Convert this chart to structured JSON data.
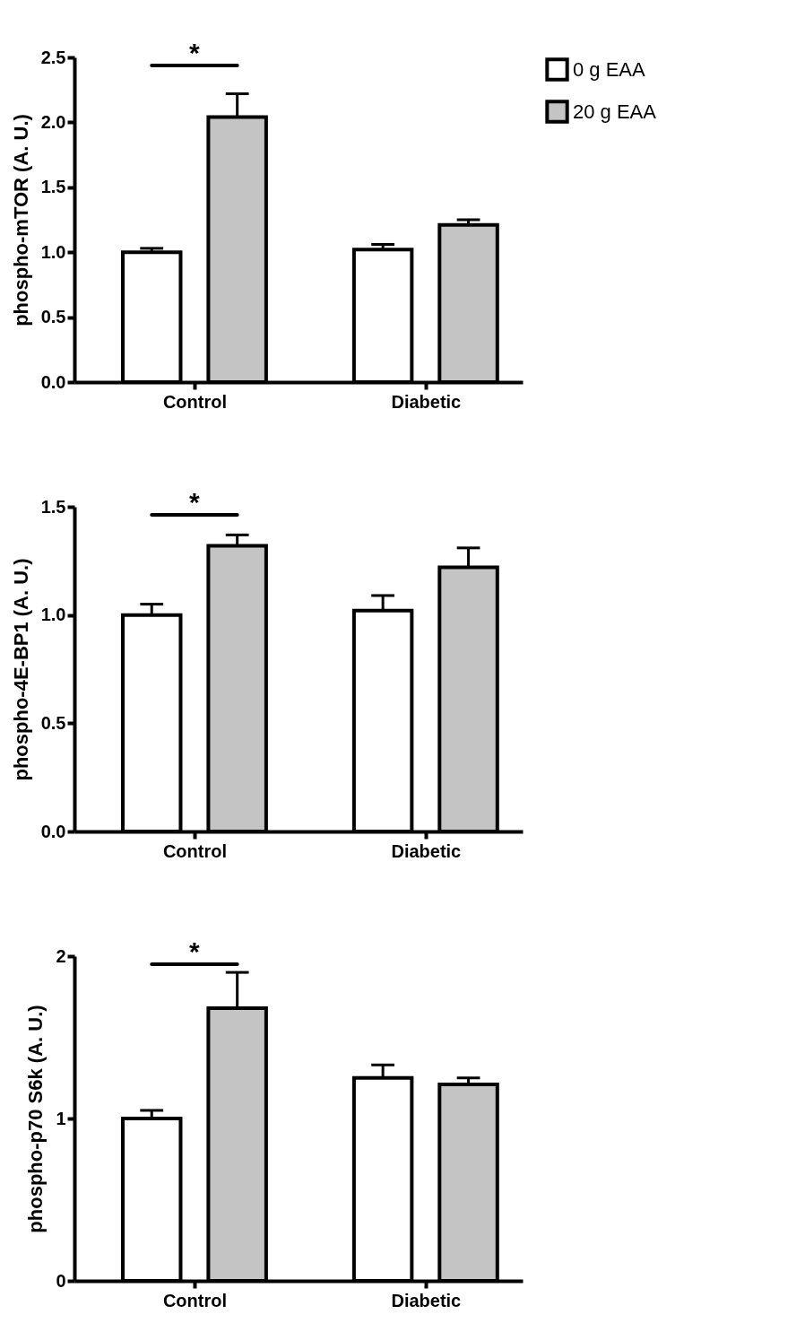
{
  "chart_data": [
    {
      "type": "bar",
      "ylabel": "phospho-mTOR (A. U.)",
      "categories": [
        "Control",
        "Diabetic"
      ],
      "series": [
        {
          "name": "0 g EAA",
          "color": "#ffffff",
          "values": [
            1.0,
            1.02
          ],
          "errors": [
            0.03,
            0.04
          ]
        },
        {
          "name": "20 g EAA",
          "color": "#c4c4c4",
          "values": [
            2.04,
            1.21
          ],
          "errors": [
            0.18,
            0.04
          ]
        }
      ],
      "ylim": [
        0,
        2.5
      ],
      "yticks": [
        {
          "value": 0,
          "label": "0.0"
        },
        {
          "value": 0.5,
          "label": "0.5"
        },
        {
          "value": 1,
          "label": "1.0"
        },
        {
          "value": 1.5,
          "label": "1.5"
        },
        {
          "value": 2,
          "label": "2.0"
        },
        {
          "value": 2.5,
          "label": "2.5"
        }
      ],
      "legend": "top right",
      "grid": false,
      "annotations": [
        "*"
      ]
    },
    {
      "type": "bar",
      "ylabel": "phospho-4E-BP1 (A. U.)",
      "categories": [
        "Control",
        "Diabetic"
      ],
      "series": [
        {
          "name": "0 g EAA",
          "color": "#ffffff",
          "values": [
            1.0,
            1.02
          ],
          "errors": [
            0.05,
            0.07
          ]
        },
        {
          "name": "20 g EAA",
          "color": "#c4c4c4",
          "values": [
            1.32,
            1.22
          ],
          "errors": [
            0.05,
            0.09
          ]
        }
      ],
      "ylim": [
        0,
        1.5
      ],
      "yticks": [
        {
          "value": 0,
          "label": "0.0"
        },
        {
          "value": 0.5,
          "label": "0.5"
        },
        {
          "value": 1,
          "label": "1.0"
        },
        {
          "value": 1.5,
          "label": "1.5"
        }
      ],
      "legend": "top right",
      "grid": false,
      "annotations": [
        "*"
      ]
    },
    {
      "type": "bar",
      "ylabel": "phospho-p70 S6k (A. U.)",
      "categories": [
        "Control",
        "Diabetic"
      ],
      "series": [
        {
          "name": "0 g EAA",
          "color": "#ffffff",
          "values": [
            1.0,
            1.25
          ],
          "errors": [
            0.05,
            0.08
          ]
        },
        {
          "name": "20 g EAA",
          "color": "#c4c4c4",
          "values": [
            1.68,
            1.21
          ],
          "errors": [
            0.22,
            0.04
          ]
        }
      ],
      "ylim": [
        0,
        2
      ],
      "yticks": [
        0,
        1,
        2
      ],
      "legend": "top right",
      "grid": false,
      "annotations": [
        "*"
      ]
    }
  ]
}
